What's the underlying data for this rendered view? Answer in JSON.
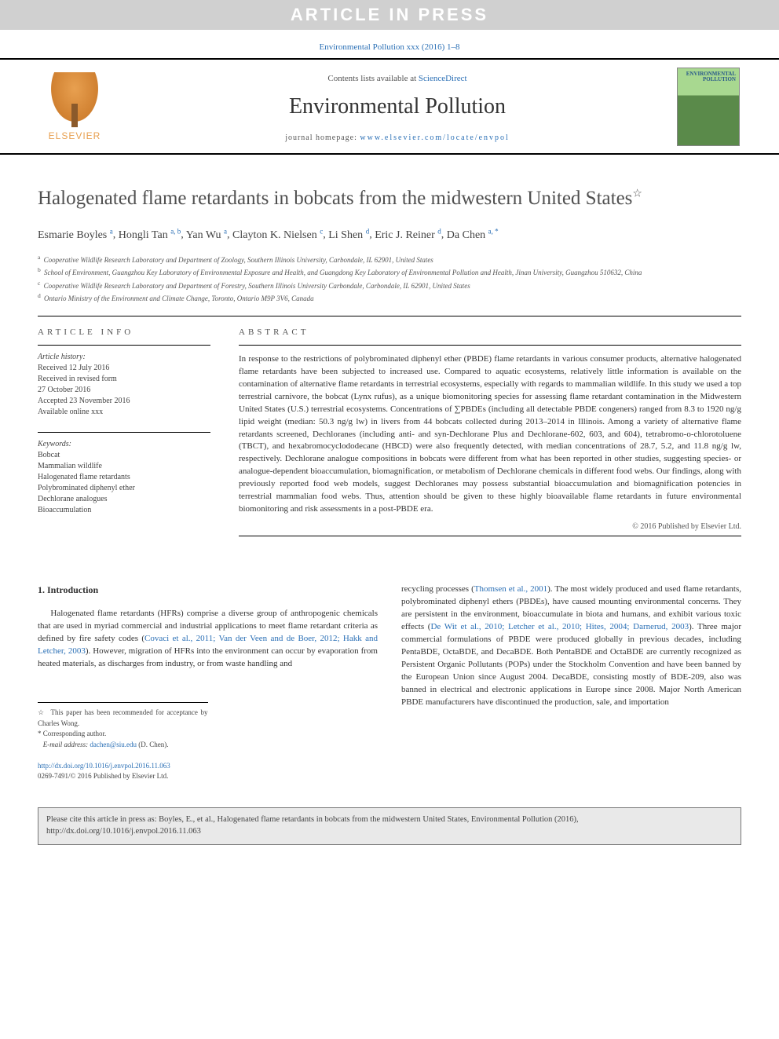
{
  "banner": "ARTICLE IN PRESS",
  "topRef": "Environmental Pollution xxx (2016) 1–8",
  "header": {
    "contentsPrefix": "Contents lists available at ",
    "contentsLink": "ScienceDirect",
    "journal": "Environmental Pollution",
    "homepagePrefix": "journal homepage: ",
    "homepageUrl": "www.elsevier.com/locate/envpol",
    "logoText": "ELSEVIER",
    "coverTitle": "ENVIRONMENTAL POLLUTION"
  },
  "title": "Halogenated flame retardants in bobcats from the midwestern United States",
  "titleNote": "☆",
  "authors": [
    {
      "name": "Esmarie Boyles",
      "aff": "a"
    },
    {
      "name": "Hongli Tan",
      "aff": "a, b"
    },
    {
      "name": "Yan Wu",
      "aff": "a"
    },
    {
      "name": "Clayton K. Nielsen",
      "aff": "c"
    },
    {
      "name": "Li Shen",
      "aff": "d"
    },
    {
      "name": "Eric J. Reiner",
      "aff": "d"
    },
    {
      "name": "Da Chen",
      "aff": "a, *"
    }
  ],
  "affiliations": [
    {
      "key": "a",
      "text": "Cooperative Wildlife Research Laboratory and Department of Zoology, Southern Illinois University, Carbondale, IL 62901, United States"
    },
    {
      "key": "b",
      "text": "School of Environment, Guangzhou Key Laboratory of Environmental Exposure and Health, and Guangdong Key Laboratory of Environmental Pollution and Health, Jinan University, Guangzhou 510632, China"
    },
    {
      "key": "c",
      "text": "Cooperative Wildlife Research Laboratory and Department of Forestry, Southern Illinois University Carbondale, Carbondale, IL 62901, United States"
    },
    {
      "key": "d",
      "text": "Ontario Ministry of the Environment and Climate Change, Toronto, Ontario M9P 3V6, Canada"
    }
  ],
  "info": {
    "headInfo": "ARTICLE INFO",
    "historyLabel": "Article history:",
    "history": [
      "Received 12 July 2016",
      "Received in revised form",
      "27 October 2016",
      "Accepted 23 November 2016",
      "Available online xxx"
    ],
    "keywordsLabel": "Keywords:",
    "keywords": [
      "Bobcat",
      "Mammalian wildlife",
      "Halogenated flame retardants",
      "Polybrominated diphenyl ether",
      "Dechlorane analogues",
      "Bioaccumulation"
    ]
  },
  "abstract": {
    "head": "ABSTRACT",
    "text": "In response to the restrictions of polybrominated diphenyl ether (PBDE) flame retardants in various consumer products, alternative halogenated flame retardants have been subjected to increased use. Compared to aquatic ecosystems, relatively little information is available on the contamination of alternative flame retardants in terrestrial ecosystems, especially with regards to mammalian wildlife. In this study we used a top terrestrial carnivore, the bobcat (Lynx rufus), as a unique biomonitoring species for assessing flame retardant contamination in the Midwestern United States (U.S.) terrestrial ecosystems. Concentrations of ∑PBDEs (including all detectable PBDE congeners) ranged from 8.3 to 1920 ng/g lipid weight (median: 50.3 ng/g lw) in livers from 44 bobcats collected during 2013–2014 in Illinois. Among a variety of alternative flame retardants screened, Dechloranes (including anti- and syn-Dechlorane Plus and Dechlorane-602, 603, and 604), tetrabromo-o-chlorotoluene (TBCT), and hexabromocyclododecane (HBCD) were also frequently detected, with median concentrations of 28.7, 5.2, and 11.8 ng/g lw, respectively. Dechlorane analogue compositions in bobcats were different from what has been reported in other studies, suggesting species- or analogue-dependent bioaccumulation, biomagnification, or metabolism of Dechlorane chemicals in different food webs. Our findings, along with previously reported food web models, suggest Dechloranes may possess substantial bioaccumulation and biomagnification potencies in terrestrial mammalian food webs. Thus, attention should be given to these highly bioavailable flame retardants in future environmental biomonitoring and risk assessments in a post-PBDE era.",
    "copyright": "© 2016 Published by Elsevier Ltd."
  },
  "intro": {
    "head": "1. Introduction",
    "leftPara": "Halogenated flame retardants (HFRs) comprise a diverse group of anthropogenic chemicals that are used in myriad commercial and industrial applications to meet flame retardant criteria as defined by fire safety codes (Covaci et al., 2011; Van der Veen and de Boer, 2012; Hakk and Letcher, 2003). However, migration of HFRs into the environment can occur by evaporation from heated materials, as discharges from industry, or from waste handling and",
    "rightPara": "recycling processes (Thomsen et al., 2001). The most widely produced and used flame retardants, polybrominated diphenyl ethers (PBDEs), have caused mounting environmental concerns. They are persistent in the environment, bioaccumulate in biota and humans, and exhibit various toxic effects (De Wit et al., 2010; Letcher et al., 2010; Hites, 2004; Darnerud, 2003). Three major commercial formulations of PBDE were produced globally in previous decades, including PentaBDE, OctaBDE, and DecaBDE. Both PentaBDE and OctaBDE are currently recognized as Persistent Organic Pollutants (POPs) under the Stockholm Convention and have been banned by the European Union since August 2004. DecaBDE, consisting mostly of BDE-209, also was banned in electrical and electronic applications in Europe since 2008. Major North American PBDE manufacturers have discontinued the production, sale, and importation"
  },
  "footnotes": {
    "star": "This paper has been recommended for acceptance by Charles Wong.",
    "corr": "Corresponding author.",
    "emailLabel": "E-mail address:",
    "email": "dachen@siu.edu",
    "emailName": "(D. Chen)."
  },
  "doi": {
    "url": "http://dx.doi.org/10.1016/j.envpol.2016.11.063",
    "issn": "0269-7491/© 2016 Published by Elsevier Ltd."
  },
  "citeBox": "Please cite this article in press as: Boyles, E., et al., Halogenated flame retardants in bobcats from the midwestern United States, Environmental Pollution (2016), http://dx.doi.org/10.1016/j.envpol.2016.11.063"
}
